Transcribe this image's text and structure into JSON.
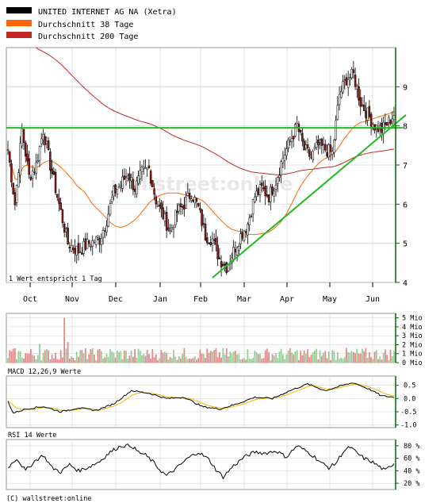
{
  "legend": [
    {
      "label": "UNITED INTERNET AG NA (Xetra)",
      "color": "#000000"
    },
    {
      "label": "Durchschnitt 38 Tage",
      "color": "#ff6600"
    },
    {
      "label": "Durchschnitt 200 Tage",
      "color": "#c02828"
    }
  ],
  "watermark": "wallstreet:online",
  "note": "1 Wert entspricht 1 Tag",
  "copyright": "(C) wallstreet:online",
  "macd_label": "MACD 12,26,9 Werte",
  "rsi_label": "RSI 14 Werte",
  "colors": {
    "grid": "#cccccc",
    "frame": "#999999",
    "axis": "#006600",
    "trend": "#22bb22",
    "up": "#ffffff",
    "down": "#8b1a1a",
    "vol_up": "#99cc99",
    "vol_down": "#e08a8a",
    "macd_signal": "#f0b800"
  },
  "chart_data": [
    {
      "type": "candlestick",
      "title": "UNITED INTERNET AG NA (Xetra)",
      "x_ticks": [
        "Oct",
        "Nov",
        "Dec",
        "Jan",
        "Feb",
        "Mar",
        "Apr",
        "May",
        "Jun"
      ],
      "y_ticks": [
        4,
        5,
        6,
        7,
        8,
        9
      ],
      "ylim": [
        4,
        10
      ],
      "grid": true,
      "series": [
        {
          "name": "UNITED INTERNET AG NA (Xetra)",
          "close_keypoints": [
            [
              0,
              7.4
            ],
            [
              4,
              6.0
            ],
            [
              8,
              7.9
            ],
            [
              12,
              6.7
            ],
            [
              16,
              7.0
            ],
            [
              20,
              7.9
            ],
            [
              24,
              7.0
            ],
            [
              30,
              5.8
            ],
            [
              34,
              5.0
            ],
            [
              40,
              4.8
            ],
            [
              46,
              5.0
            ],
            [
              52,
              5.1
            ],
            [
              56,
              5.6
            ],
            [
              60,
              6.3
            ],
            [
              64,
              6.5
            ],
            [
              68,
              6.8
            ],
            [
              72,
              6.4
            ],
            [
              76,
              6.8
            ],
            [
              80,
              6.9
            ],
            [
              84,
              6.1
            ],
            [
              88,
              5.7
            ],
            [
              92,
              5.3
            ],
            [
              96,
              5.8
            ],
            [
              100,
              6.0
            ],
            [
              104,
              6.3
            ],
            [
              108,
              5.9
            ],
            [
              112,
              5.2
            ],
            [
              116,
              5.1
            ],
            [
              120,
              4.6
            ],
            [
              124,
              4.4
            ],
            [
              128,
              4.8
            ],
            [
              132,
              5.2
            ],
            [
              136,
              5.5
            ],
            [
              140,
              6.2
            ],
            [
              144,
              6.4
            ],
            [
              148,
              6.2
            ],
            [
              152,
              6.6
            ],
            [
              156,
              7.2
            ],
            [
              160,
              7.6
            ],
            [
              164,
              8.0
            ],
            [
              168,
              7.4
            ],
            [
              172,
              7.2
            ],
            [
              176,
              7.5
            ],
            [
              180,
              7.4
            ],
            [
              184,
              7.3
            ],
            [
              188,
              8.8
            ],
            [
              192,
              9.2
            ],
            [
              196,
              9.3
            ],
            [
              200,
              8.6
            ],
            [
              204,
              8.3
            ],
            [
              208,
              8.0
            ],
            [
              212,
              7.9
            ],
            [
              216,
              8.1
            ],
            [
              219,
              8.3
            ]
          ]
        },
        {
          "name": "Durchschnitt 38 Tage"
        },
        {
          "name": "Durchschnitt 200 Tage"
        }
      ],
      "horizontal_line": 7.95,
      "trendline": [
        [
          116,
          4.12
        ],
        [
          219,
          8.2
        ]
      ]
    },
    {
      "type": "bar",
      "y_ticks": [
        "5 Mio",
        "4 Mio",
        "3 Mio",
        "2 Mio",
        "1 Mio",
        "0 Mio"
      ],
      "ylim": [
        0,
        5.5
      ],
      "spikes": [
        {
          "day": 32,
          "value": 5.0
        },
        {
          "day": 34,
          "value": 2.3
        },
        {
          "day": 18,
          "value": 2.1
        }
      ]
    },
    {
      "type": "line",
      "title": "MACD 12,26,9 Werte",
      "y_ticks": [
        "0.5",
        "0.0",
        "-0.5",
        "-1.0"
      ],
      "ylim": [
        -1.1,
        0.85
      ],
      "macd_keypoints": [
        [
          0,
          -0.1
        ],
        [
          3,
          -0.55
        ],
        [
          10,
          -0.4
        ],
        [
          20,
          -0.3
        ],
        [
          30,
          -0.5
        ],
        [
          40,
          -0.35
        ],
        [
          50,
          -0.45
        ],
        [
          60,
          -0.2
        ],
        [
          70,
          0.3
        ],
        [
          80,
          0.2
        ],
        [
          90,
          0.0
        ],
        [
          100,
          0.05
        ],
        [
          110,
          -0.3
        ],
        [
          120,
          -0.4
        ],
        [
          130,
          -0.2
        ],
        [
          140,
          0.05
        ],
        [
          150,
          0.0
        ],
        [
          160,
          0.3
        ],
        [
          170,
          0.55
        ],
        [
          180,
          0.3
        ],
        [
          190,
          0.5
        ],
        [
          196,
          0.6
        ],
        [
          205,
          0.35
        ],
        [
          212,
          0.1
        ],
        [
          219,
          0.05
        ]
      ]
    },
    {
      "type": "line",
      "title": "RSI 14 Werte",
      "y_ticks": [
        "80 %",
        "60 %",
        "40 %",
        "20 %"
      ],
      "ylim": [
        10,
        90
      ],
      "rsi_keypoints": [
        [
          0,
          45
        ],
        [
          5,
          60
        ],
        [
          10,
          40
        ],
        [
          15,
          55
        ],
        [
          20,
          65
        ],
        [
          25,
          45
        ],
        [
          30,
          38
        ],
        [
          35,
          50
        ],
        [
          40,
          40
        ],
        [
          45,
          45
        ],
        [
          52,
          55
        ],
        [
          58,
          70
        ],
        [
          64,
          80
        ],
        [
          70,
          80
        ],
        [
          74,
          70
        ],
        [
          78,
          65
        ],
        [
          82,
          55
        ],
        [
          86,
          42
        ],
        [
          90,
          32
        ],
        [
          96,
          45
        ],
        [
          102,
          60
        ],
        [
          108,
          70
        ],
        [
          114,
          58
        ],
        [
          118,
          42
        ],
        [
          122,
          30
        ],
        [
          128,
          48
        ],
        [
          134,
          62
        ],
        [
          140,
          70
        ],
        [
          146,
          68
        ],
        [
          152,
          72
        ],
        [
          158,
          62
        ],
        [
          164,
          80
        ],
        [
          170,
          70
        ],
        [
          174,
          62
        ],
        [
          178,
          52
        ],
        [
          182,
          45
        ],
        [
          186,
          52
        ],
        [
          190,
          70
        ],
        [
          194,
          78
        ],
        [
          198,
          68
        ],
        [
          202,
          60
        ],
        [
          206,
          55
        ],
        [
          210,
          48
        ],
        [
          214,
          40
        ],
        [
          217,
          48
        ],
        [
          219,
          52
        ]
      ]
    }
  ]
}
